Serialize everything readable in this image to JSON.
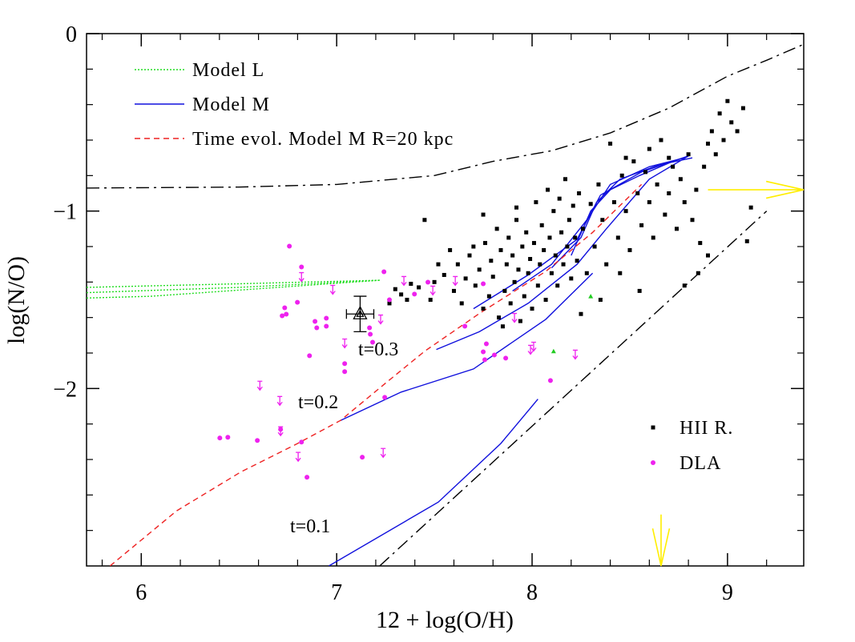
{
  "chart_data": {
    "type": "scatter",
    "x_label": "12 + log(O/H)",
    "y_label": "log(N/O)",
    "xlim": [
      5.72,
      9.39
    ],
    "ylim": [
      -3,
      0
    ],
    "xticks": [
      6,
      7,
      8,
      9
    ],
    "yticks": [
      {
        "value": -2,
        "label": "−2"
      },
      {
        "value": -1,
        "label": "−1"
      },
      0
    ],
    "xminorticks": [
      5.8,
      6.2,
      6.4,
      6.6,
      6.8,
      7.2,
      7.4,
      7.6,
      7.8,
      8.2,
      8.4,
      8.6,
      8.8,
      9.2
    ],
    "yminorticks": [
      -2.8,
      -2.6,
      -2.4,
      -2.2,
      -1.8,
      -1.6,
      -1.4,
      -1.2,
      -0.8,
      -0.6,
      -0.4,
      -0.2
    ],
    "grid": false,
    "annotations": [
      "t=0.3",
      "t=0.2",
      "t=0.1"
    ],
    "series": [
      {
        "name": "Model L",
        "type": "line",
        "color": "#22dd22",
        "dash": "dotted",
        "x": [
          5.72,
          6.5,
          7.22
        ],
        "values": [
          -1.43,
          -1.41,
          -1.39
        ]
      },
      {
        "type": "line",
        "color": "#22dd22",
        "dash": "dotted",
        "x": [
          5.72,
          6.5,
          7.22
        ],
        "values": [
          -1.46,
          -1.43,
          -1.39
        ]
      },
      {
        "type": "line",
        "color": "#22dd22",
        "dash": "dotted",
        "x": [
          5.72,
          6.05,
          7.22
        ],
        "values": [
          -1.49,
          -1.48,
          -1.39
        ]
      },
      {
        "name": "Model M",
        "type": "line",
        "color": "#1010dd",
        "dash": "solid",
        "x": [
          6.96,
          7.52,
          7.84,
          8.03
        ],
        "values": [
          -3,
          -2.64,
          -2.31,
          -2.06
        ]
      },
      {
        "type": "line",
        "color": "#1010dd",
        "dash": "solid",
        "x": [
          7.02,
          7.33,
          7.7,
          8.07,
          8.31
        ],
        "values": [
          -2.18,
          -2.02,
          -1.89,
          -1.61,
          -1.35
        ]
      },
      {
        "type": "line",
        "color": "#1010dd",
        "dash": "solid",
        "x": [
          7.51,
          7.73,
          7.98,
          8.23,
          8.38,
          8.6,
          8.8
        ],
        "values": [
          -1.78,
          -1.68,
          -1.52,
          -1.3,
          -1.1,
          -0.82,
          -0.69
        ]
      },
      {
        "type": "line",
        "color": "#1010dd",
        "dash": "solid",
        "x": [
          7.7,
          7.98,
          8.23,
          8.35,
          8.56,
          8.8
        ],
        "values": [
          -1.55,
          -1.36,
          -1.16,
          -0.91,
          -0.78,
          -0.69
        ]
      },
      {
        "type": "line",
        "color": "#1010dd",
        "dash": "solid",
        "x": [
          7.9,
          8.1,
          8.28,
          8.4,
          8.6,
          8.78
        ],
        "values": [
          -1.45,
          -1.3,
          -1.05,
          -0.85,
          -0.75,
          -0.7
        ]
      },
      {
        "type": "line",
        "color": "#1010dd",
        "dash": "solid",
        "x": [
          8.1,
          8.25,
          8.33,
          8.45,
          8.65,
          8.82
        ],
        "values": [
          -1.32,
          -1.15,
          -0.95,
          -0.82,
          -0.74,
          -0.7
        ]
      },
      {
        "type": "line",
        "color": "#1010dd",
        "dash": "solid",
        "x": [
          8.2,
          8.3,
          8.4,
          8.55,
          8.72,
          8.8
        ],
        "values": [
          -1.25,
          -1.0,
          -0.88,
          -0.8,
          -0.72,
          -0.69
        ]
      },
      {
        "name": "Time evol. Model M R=20 kpc",
        "type": "line",
        "color": "#ee2222",
        "dash": "dashed",
        "x": [
          5.84,
          6.18,
          6.51,
          6.8,
          7.02,
          7.25,
          7.45,
          7.74,
          8.07,
          8.31,
          8.56
        ],
        "values": [
          -3,
          -2.69,
          -2.47,
          -2.31,
          -2.18,
          -1.97,
          -1.79,
          -1.57,
          -1.34,
          -1.12,
          -0.85
        ]
      },
      {
        "type": "line",
        "color": "#000000",
        "dash": "dashdot",
        "x": [
          5.72,
          6.5,
          7,
          7.5,
          7.8,
          8.1,
          8.4,
          8.7,
          9,
          9.2,
          9.39
        ],
        "values": [
          -0.87,
          -0.865,
          -0.85,
          -0.8,
          -0.72,
          -0.66,
          -0.56,
          -0.42,
          -0.24,
          -0.15,
          -0.06
        ]
      },
      {
        "type": "line",
        "color": "#000000",
        "dash": "dashdot",
        "x": [
          7.22,
          9.2
        ],
        "values": [
          -3,
          -1.0
        ]
      },
      {
        "type": "arrow",
        "color": "#ffee00",
        "x": [
          8.9,
          9.39
        ],
        "values": [
          -0.88,
          -0.88
        ]
      },
      {
        "type": "arrow",
        "color": "#ffee00",
        "x": [
          8.66,
          8.66
        ],
        "values": [
          -2.71,
          -3
        ]
      },
      {
        "type": "scatter",
        "marker": "triangle-small",
        "color": "#22cc22",
        "x": [
          8.11,
          8.3
        ],
        "values": [
          -1.79,
          -1.48
        ]
      },
      {
        "type": "errorbar",
        "marker": "triangle",
        "color": "#000000",
        "x": [
          7.12
        ],
        "values": [
          -1.58
        ],
        "xerr": [
          0.07
        ],
        "yerr": [
          0.1
        ]
      },
      {
        "name": "HII R.",
        "type": "scatter",
        "marker": "square",
        "color": "#000000",
        "x": [
          7.27,
          7.3,
          7.33,
          7.36,
          7.38,
          7.42,
          7.45,
          7.48,
          7.5,
          7.52,
          7.55,
          7.58,
          7.6,
          7.62,
          7.64,
          7.66,
          7.68,
          7.7,
          7.71,
          7.73,
          7.75,
          7.76,
          7.78,
          7.79,
          7.8,
          7.82,
          7.83,
          7.84,
          7.86,
          7.87,
          7.88,
          7.89,
          7.9,
          7.91,
          7.92,
          7.93,
          7.94,
          7.95,
          7.96,
          7.97,
          7.98,
          7.99,
          8.0,
          8.01,
          8.02,
          8.03,
          8.04,
          8.05,
          8.06,
          8.07,
          8.08,
          8.09,
          8.1,
          8.11,
          8.12,
          8.13,
          8.14,
          8.15,
          8.16,
          8.17,
          8.18,
          8.19,
          8.2,
          8.21,
          8.22,
          8.23,
          8.24,
          8.26,
          8.28,
          8.3,
          8.32,
          8.34,
          8.36,
          8.38,
          8.4,
          8.42,
          8.44,
          8.46,
          8.48,
          8.5,
          8.52,
          8.54,
          8.56,
          8.58,
          8.6,
          8.62,
          8.64,
          8.66,
          8.68,
          8.7,
          8.72,
          8.74,
          8.76,
          8.78,
          8.8,
          8.82,
          8.84,
          8.86,
          8.88,
          8.9,
          8.92,
          8.94,
          8.96,
          8.98,
          9.0,
          9.02,
          9.05,
          9.08,
          9.1,
          9.12,
          8.9,
          8.85,
          8.78,
          8.55,
          8.45,
          8.35,
          8.25,
          7.85,
          7.75,
          7.92,
          8.6,
          8.7,
          8.48
        ],
        "values": [
          -1.52,
          -1.44,
          -1.47,
          -1.5,
          -1.41,
          -1.43,
          -1.05,
          -1.5,
          -1.4,
          -1.3,
          -1.36,
          -1.22,
          -1.45,
          -1.3,
          -1.52,
          -1.38,
          -1.25,
          -1.2,
          -1.42,
          -1.33,
          -1.55,
          -1.18,
          -1.48,
          -1.28,
          -1.37,
          -1.1,
          -1.6,
          -1.22,
          -1.45,
          -1.3,
          -1.15,
          -1.52,
          -1.25,
          -1.4,
          -1.05,
          -1.33,
          -1.62,
          -1.2,
          -1.48,
          -1.12,
          -1.35,
          -1.27,
          -1.55,
          -1.18,
          -0.95,
          -1.42,
          -1.3,
          -1.08,
          -1.22,
          -1.5,
          -0.88,
          -1.15,
          -1.35,
          -1.0,
          -1.25,
          -1.42,
          -0.93,
          -1.12,
          -1.3,
          -0.82,
          -1.2,
          -1.05,
          -1.38,
          -0.97,
          -1.15,
          -1.28,
          -0.9,
          -1.1,
          -1.35,
          -0.96,
          -1.2,
          -0.85,
          -1.05,
          -1.3,
          -0.62,
          -0.95,
          -1.15,
          -0.8,
          -1.0,
          -1.22,
          -0.72,
          -0.9,
          -1.08,
          -0.78,
          -0.95,
          -1.15,
          -0.85,
          -0.6,
          -1.02,
          -0.9,
          -0.75,
          -1.1,
          -0.82,
          -0.95,
          -0.68,
          -1.05,
          -0.88,
          -1.18,
          -0.75,
          -0.62,
          -0.55,
          -0.68,
          -0.45,
          -0.6,
          -0.38,
          -0.5,
          -0.55,
          -0.42,
          -1.17,
          -0.98,
          -1.25,
          -1.35,
          -1.42,
          -1.45,
          -1.35,
          -1.5,
          -1.58,
          -1.65,
          -1.02,
          -0.98,
          -0.65,
          -0.7,
          -0.7
        ]
      },
      {
        "name": "DLA",
        "type": "scatter",
        "marker": "circle",
        "color": "#ee22ee",
        "x": [
          6.758,
          6.82,
          6.734,
          6.721,
          6.742,
          6.799,
          6.889,
          6.898,
          6.947,
          6.947,
          6.861,
          7.041,
          7.041,
          7.168,
          7.172,
          7.184,
          7.242,
          7.467,
          7.398,
          7.27,
          7.656,
          7.766,
          7.75,
          7.758,
          7.865,
          7.807,
          6.713,
          6.82,
          6.594,
          6.402,
          6.443,
          6.848,
          7.131,
          7.246,
          8.094,
          7.75
        ],
        "values": [
          -1.198,
          -1.315,
          -1.545,
          -1.59,
          -1.581,
          -1.514,
          -1.622,
          -1.658,
          -1.604,
          -1.649,
          -1.815,
          -1.86,
          -1.905,
          -1.658,
          -1.694,
          -1.739,
          -1.342,
          -1.401,
          -1.468,
          -1.5,
          -1.649,
          -1.748,
          -1.793,
          -1.838,
          -1.829,
          -1.811,
          -2.23,
          -2.302,
          -2.293,
          -2.279,
          -2.275,
          -2.5,
          -2.387,
          -2.05,
          -1.955,
          -1.41
        ]
      },
      {
        "type": "scatter",
        "marker": "limit",
        "color": "#ee22ee",
        "x": [
          6.82,
          6.98,
          7.041,
          6.709,
          6.607,
          6.713,
          6.803,
          7.238,
          7.344,
          7.492,
          7.607,
          7.225,
          7.91,
          7.992,
          8.008,
          8.221
        ],
        "values": [
          -1.374,
          -1.446,
          -1.748,
          -2.072,
          -1.986,
          -2.243,
          -2.387,
          -2.365,
          -1.396,
          -1.45,
          -1.396,
          -1.613,
          -1.604,
          -1.784,
          -1.766,
          -1.811
        ]
      }
    ]
  }
}
